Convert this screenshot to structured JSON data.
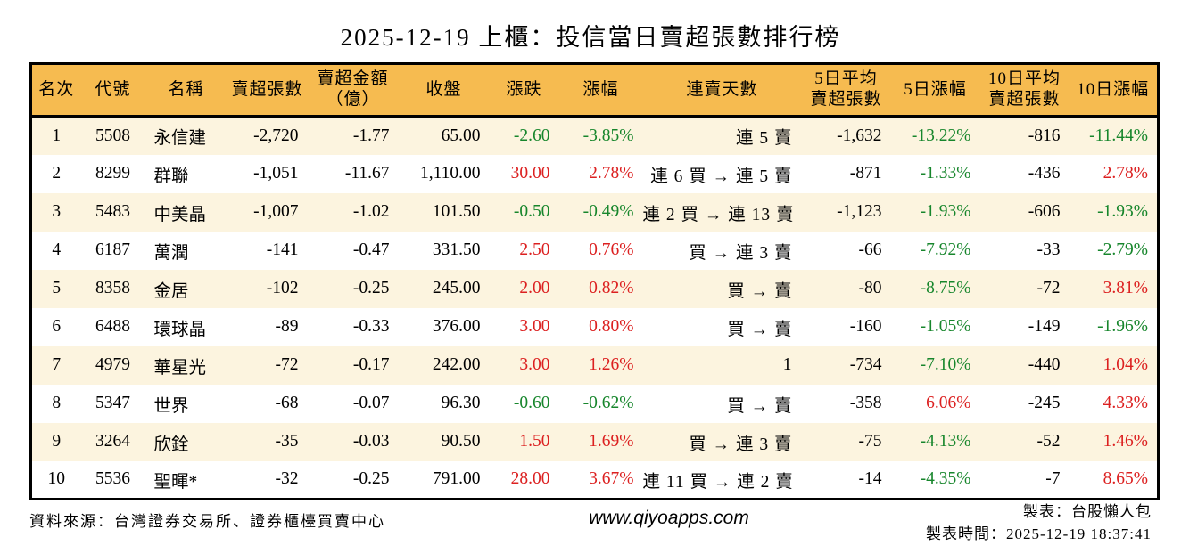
{
  "title": "2025-12-19 上櫃：投信當日賣超張數排行榜",
  "colors": {
    "header_bg": "#f6bb50",
    "row_odd_bg": "#fcf4df",
    "up_red": "#dc2020",
    "down_green": "#17862c",
    "border": "#000000"
  },
  "table": {
    "headers": [
      "名次",
      "代號",
      "名稱",
      "賣超張數",
      "賣超金額\n（億）",
      "收盤",
      "漲跌",
      "漲幅",
      "連賣天數",
      "5日平均\n賣超張數",
      "5日漲幅",
      "10日平均\n賣超張數",
      "10日漲幅"
    ],
    "rows": [
      [
        "1",
        "5508",
        "永信建",
        "-2,720",
        "-1.77",
        "65.00",
        "-2.60",
        "-3.85%",
        "連 5 賣",
        "-1,632",
        "-13.22%",
        "-816",
        "-11.44%"
      ],
      [
        "2",
        "8299",
        "群聯",
        "-1,051",
        "-11.67",
        "1,110.00",
        "30.00",
        "2.78%",
        "連 6 買 → 連 5 賣",
        "-871",
        "-1.33%",
        "-436",
        "2.78%"
      ],
      [
        "3",
        "5483",
        "中美晶",
        "-1,007",
        "-1.02",
        "101.50",
        "-0.50",
        "-0.49%",
        "連 2 買 → 連 13 賣",
        "-1,123",
        "-1.93%",
        "-606",
        "-1.93%"
      ],
      [
        "4",
        "6187",
        "萬潤",
        "-141",
        "-0.47",
        "331.50",
        "2.50",
        "0.76%",
        "買 → 連 3 賣",
        "-66",
        "-7.92%",
        "-33",
        "-2.79%"
      ],
      [
        "5",
        "8358",
        "金居",
        "-102",
        "-0.25",
        "245.00",
        "2.00",
        "0.82%",
        "買 → 賣",
        "-80",
        "-8.75%",
        "-72",
        "3.81%"
      ],
      [
        "6",
        "6488",
        "環球晶",
        "-89",
        "-0.33",
        "376.00",
        "3.00",
        "0.80%",
        "買 → 賣",
        "-160",
        "-1.05%",
        "-149",
        "-1.96%"
      ],
      [
        "7",
        "4979",
        "華星光",
        "-72",
        "-0.17",
        "242.00",
        "3.00",
        "1.26%",
        "1",
        "-734",
        "-7.10%",
        "-440",
        "1.04%"
      ],
      [
        "8",
        "5347",
        "世界",
        "-68",
        "-0.07",
        "96.30",
        "-0.60",
        "-0.62%",
        "買 → 賣",
        "-358",
        "6.06%",
        "-245",
        "4.33%"
      ],
      [
        "9",
        "3264",
        "欣銓",
        "-35",
        "-0.03",
        "90.50",
        "1.50",
        "1.69%",
        "買 → 連 3 賣",
        "-75",
        "-4.13%",
        "-52",
        "1.46%"
      ],
      [
        "10",
        "5536",
        "聖暉*",
        "-32",
        "-0.25",
        "791.00",
        "28.00",
        "3.67%",
        "連 11 買 → 連 2 賣",
        "-14",
        "-4.35%",
        "-7",
        "8.65%"
      ]
    ]
  },
  "footer": {
    "source": "資料來源：台灣證券交易所、證券櫃檯買賣中心",
    "site": "www.qiyoapps.com",
    "maker": "製表：台股懶人包",
    "generated_at": "製表時間：2025-12-19 18:37:41"
  }
}
